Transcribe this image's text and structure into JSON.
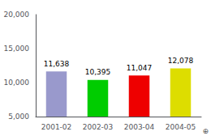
{
  "chart_data": {
    "type": "bar",
    "categories": [
      "2001-02",
      "2002-03",
      "2003-04",
      "2004-05"
    ],
    "values": [
      11638,
      10395,
      11047,
      12078
    ],
    "value_labels": [
      "11,638",
      "10,395",
      "11,047",
      "12,078"
    ],
    "colors": [
      "#9999cc",
      "#00cc00",
      "#ee0000",
      "#dddd00"
    ],
    "ylim": [
      5000,
      20000
    ],
    "yticks": [
      {
        "value": 5000,
        "label": "5,000"
      },
      {
        "value": 10000,
        "label": "10,000"
      },
      {
        "value": 15000,
        "label": "15,000"
      },
      {
        "value": 20000,
        "label": "20,000"
      }
    ],
    "data_labels": true,
    "grid": false,
    "annotations": [
      "⊕"
    ]
  }
}
